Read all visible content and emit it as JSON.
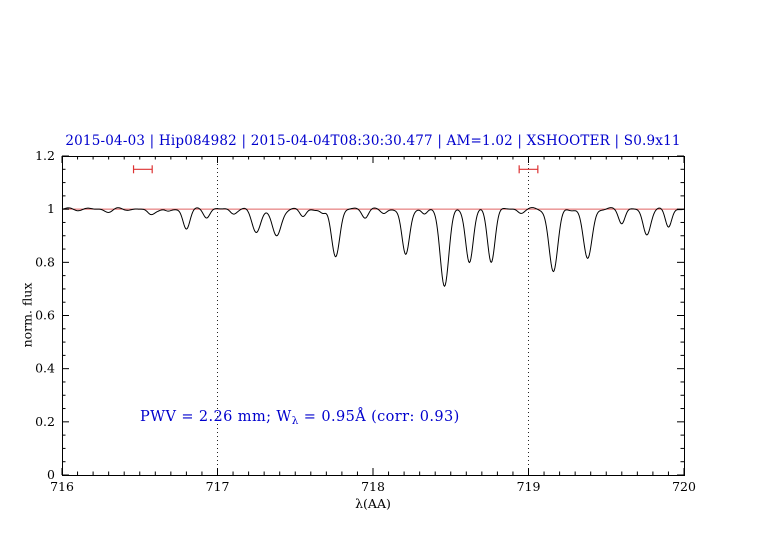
{
  "colors": {
    "accent_blue": "#0000cd",
    "continuum_red": "#e06060",
    "marker_red": "#dd3333",
    "spectrum_black": "#000000"
  },
  "header": {
    "title": "2015-04-03 | Hip084982 | 2015-04-04T08:30:30.477 | AM=1.02 | XSHOOTER | S0.9x11"
  },
  "annotation": {
    "part1": "PWV = 2.26 mm; W",
    "sub": "λ",
    "part2": " = 0.95Å (corr: 0.93)"
  },
  "chart_data": {
    "type": "line",
    "title": "2015-04-03 | Hip084982 | 2015-04-04T08:30:30.477 | AM=1.02 | XSHOOTER | S0.9x11",
    "xlabel": "λ(AA)",
    "ylabel": "norm. flux",
    "xlim": [
      716,
      720
    ],
    "ylim": [
      0,
      1.2
    ],
    "x_ticks": [
      716,
      717,
      718,
      719,
      720
    ],
    "y_ticks": [
      0,
      0.2,
      0.4,
      0.6,
      0.8,
      1,
      1.2
    ],
    "x_minor_step": 0.1,
    "y_minor_step": 0.05,
    "grid": false,
    "dotted_guides_x": [
      717,
      719
    ],
    "continuum_level": 1.0,
    "sample_step": 0.005,
    "pwv_mm": 2.26,
    "equivalent_width_A": 0.95,
    "correlation": 0.93,
    "range_markers": {
      "y": 1.15,
      "half_width": 0.06,
      "centers": [
        716.52,
        719.0
      ]
    },
    "noise": [
      {
        "amp": 0.0035,
        "freq": 37.7,
        "phase": 0
      },
      {
        "amp": 0.0025,
        "freq": 61.3,
        "phase": 2
      }
    ],
    "absorption_lines": [
      {
        "center": 716.3,
        "depth": 0.008,
        "sigma": 0.025
      },
      {
        "center": 716.57,
        "depth": 0.022,
        "sigma": 0.022
      },
      {
        "center": 716.68,
        "depth": 0.012,
        "sigma": 0.02
      },
      {
        "center": 716.8,
        "depth": 0.072,
        "sigma": 0.022
      },
      {
        "center": 716.93,
        "depth": 0.028,
        "sigma": 0.02
      },
      {
        "center": 717.1,
        "depth": 0.015,
        "sigma": 0.02
      },
      {
        "center": 717.25,
        "depth": 0.085,
        "sigma": 0.028
      },
      {
        "center": 717.38,
        "depth": 0.105,
        "sigma": 0.028
      },
      {
        "center": 717.55,
        "depth": 0.028,
        "sigma": 0.02
      },
      {
        "center": 717.68,
        "depth": 0.02,
        "sigma": 0.018
      },
      {
        "center": 717.76,
        "depth": 0.175,
        "sigma": 0.026
      },
      {
        "center": 717.95,
        "depth": 0.028,
        "sigma": 0.02
      },
      {
        "center": 718.07,
        "depth": 0.015,
        "sigma": 0.02
      },
      {
        "center": 718.21,
        "depth": 0.175,
        "sigma": 0.024
      },
      {
        "center": 718.33,
        "depth": 0.02,
        "sigma": 0.018
      },
      {
        "center": 718.46,
        "depth": 0.285,
        "sigma": 0.028
      },
      {
        "center": 718.62,
        "depth": 0.2,
        "sigma": 0.024
      },
      {
        "center": 718.76,
        "depth": 0.195,
        "sigma": 0.024
      },
      {
        "center": 718.95,
        "depth": 0.012,
        "sigma": 0.02
      },
      {
        "center": 719.16,
        "depth": 0.235,
        "sigma": 0.028
      },
      {
        "center": 719.38,
        "depth": 0.185,
        "sigma": 0.028
      },
      {
        "center": 719.6,
        "depth": 0.05,
        "sigma": 0.02
      },
      {
        "center": 719.76,
        "depth": 0.095,
        "sigma": 0.024
      },
      {
        "center": 719.9,
        "depth": 0.065,
        "sigma": 0.02
      }
    ]
  }
}
